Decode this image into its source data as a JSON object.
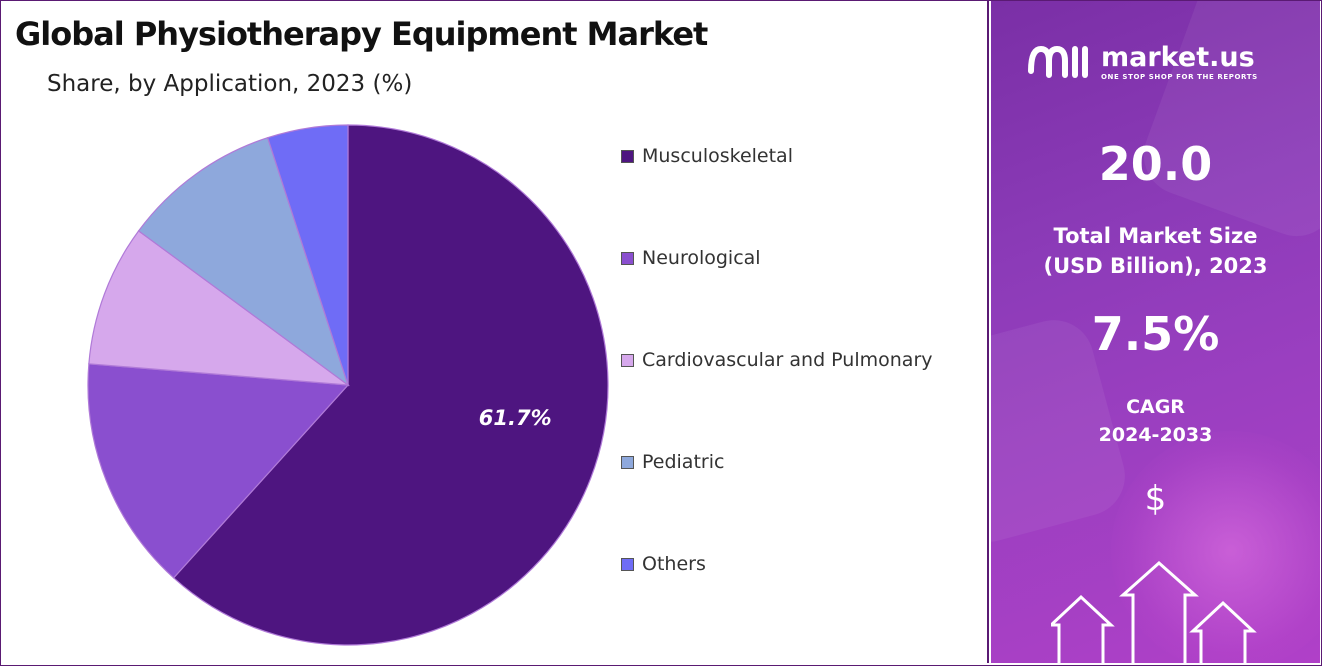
{
  "title": "Global Physiotherapy Equipment Market",
  "subtitle": "Share, by Application, 2023 (%)",
  "chart_data": {
    "type": "pie",
    "title": "Global Physiotherapy Equipment Market",
    "subtitle": "Share, by Application, 2023 (%)",
    "categories": [
      "Musculoskeletal",
      "Neurological",
      "Cardiovascular and Pulmonary",
      "Pediatric",
      "Others"
    ],
    "values": [
      61.7,
      14.6,
      8.8,
      9.9,
      5.0
    ],
    "colors": [
      "#4e1580",
      "#8a4fcf",
      "#d6a8ec",
      "#8ea8dc",
      "#6f6cf6"
    ],
    "data_labels": [
      "61.7%",
      "",
      "",
      "",
      ""
    ],
    "start_angle_deg": 0,
    "direction": "clockwise",
    "legend_placement": "right"
  },
  "sidebar": {
    "logo_name": "market.us",
    "logo_tagline": "ONE STOP SHOP FOR THE REPORTS",
    "market_size_value": "20.0",
    "market_size_label_line1": "Total Market Size",
    "market_size_label_line2": "(USD Billion), 2023",
    "cagr_value": "7.5%",
    "cagr_label_line1": "CAGR",
    "cagr_label_line2": "2024-2033",
    "currency_symbol": "$"
  },
  "icons": {
    "logo": "market-us-logo-icon",
    "arrows": "growth-arrows-icon"
  }
}
